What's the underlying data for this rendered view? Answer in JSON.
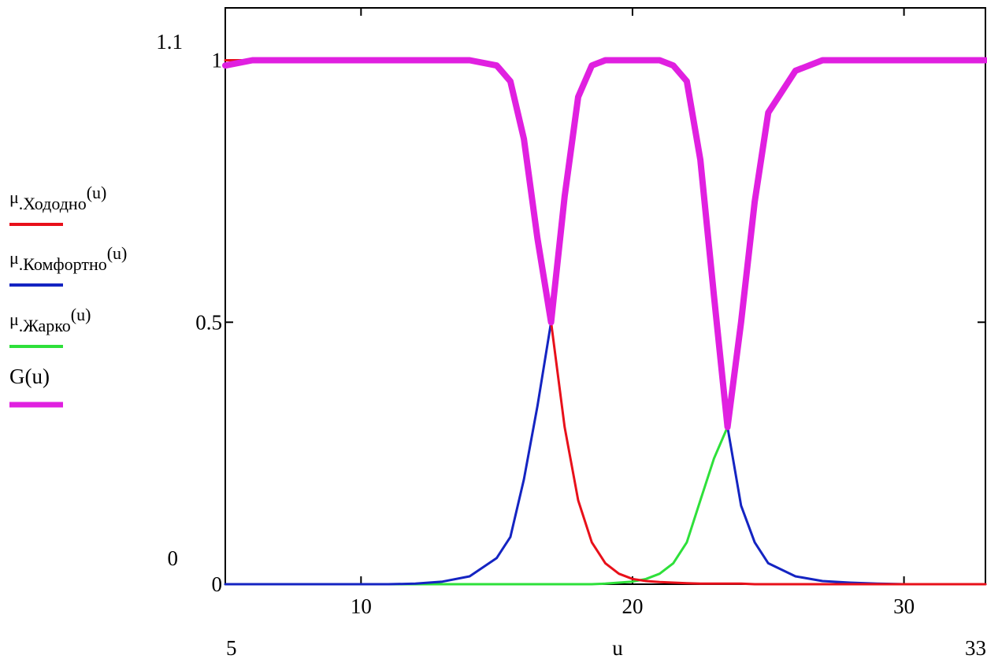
{
  "chart_data": {
    "type": "line",
    "xlabel": "u",
    "xlim": [
      5,
      33
    ],
    "ylim": [
      0,
      1.1
    ],
    "x_min_label": "5",
    "x_max_label": "33",
    "y_max_label": "1.1",
    "y_min_label": "0",
    "x_ticks": [
      10,
      20,
      30
    ],
    "x_tick_labels": [
      "10",
      "20",
      "30"
    ],
    "y_ticks": [
      0,
      0.5,
      1
    ],
    "y_tick_labels": [
      "0",
      "0.5",
      "1"
    ],
    "grid": false,
    "legend_position": "left",
    "x": [
      5,
      6,
      7,
      8,
      9,
      10,
      11,
      12,
      13,
      14,
      15,
      15.5,
      16,
      16.5,
      17,
      17.5,
      18,
      18.5,
      19,
      19.5,
      20,
      20.5,
      21,
      21.5,
      22,
      22.5,
      23,
      23.5,
      24,
      24.5,
      25,
      26,
      27,
      28,
      29,
      30,
      31,
      32,
      33
    ],
    "series": [
      {
        "name": "μ.Хододно(u)",
        "color": "#e8101a",
        "values": [
          1,
          1,
          1,
          1,
          1,
          1,
          1,
          1,
          1,
          1,
          0.99,
          0.96,
          0.85,
          0.66,
          0.5,
          0.3,
          0.16,
          0.08,
          0.04,
          0.02,
          0.01,
          0.006,
          0.004,
          0.003,
          0.002,
          0.001,
          0.001,
          0.001,
          0.001,
          0,
          0,
          0,
          0,
          0,
          0,
          0,
          0,
          0,
          0
        ]
      },
      {
        "name": "μ.Комфортно(u)",
        "color": "#1424c2",
        "values": [
          0,
          0,
          0,
          0,
          0,
          0,
          0,
          0.001,
          0.005,
          0.015,
          0.05,
          0.09,
          0.2,
          0.34,
          0.5,
          0.74,
          0.93,
          0.99,
          1,
          1,
          1,
          1,
          1,
          0.99,
          0.96,
          0.81,
          0.55,
          0.3,
          0.15,
          0.08,
          0.04,
          0.015,
          0.006,
          0.003,
          0.001,
          0,
          0,
          0,
          0
        ]
      },
      {
        "name": "μ.Жарко(u)",
        "color": "#2ee03a",
        "values": [
          0,
          0,
          0,
          0,
          0,
          0,
          0,
          0,
          0,
          0,
          0,
          0,
          0,
          0,
          0,
          0,
          0,
          0,
          0.001,
          0.003,
          0.005,
          0.01,
          0.02,
          0.04,
          0.08,
          0.16,
          0.24,
          0.3,
          0.5,
          0.73,
          0.9,
          0.98,
          1,
          1,
          1,
          1,
          1,
          1,
          1
        ]
      },
      {
        "name": "G(u)",
        "color": "#e020e0",
        "values": [
          0.99,
          1,
          1,
          1,
          1,
          1,
          1,
          1,
          1,
          1,
          0.99,
          0.96,
          0.85,
          0.66,
          0.5,
          0.74,
          0.93,
          0.99,
          1,
          1,
          1,
          1,
          1,
          0.99,
          0.96,
          0.81,
          0.55,
          0.3,
          0.5,
          0.73,
          0.9,
          0.98,
          1,
          1,
          1,
          1,
          1,
          1,
          1
        ]
      }
    ],
    "legend": [
      {
        "prefix": "μ",
        "sub": ".Хододно",
        "arg": "(u)",
        "color": "#e8101a"
      },
      {
        "prefix": "μ",
        "sub": ".Комфортно",
        "arg": "(u)",
        "color": "#1424c2"
      },
      {
        "prefix": "μ",
        "sub": ".Жарко",
        "arg": "(u)",
        "color": "#2ee03a"
      },
      {
        "prefix": "G",
        "sub": "",
        "arg": "(u)",
        "color": "#e020e0"
      }
    ]
  }
}
